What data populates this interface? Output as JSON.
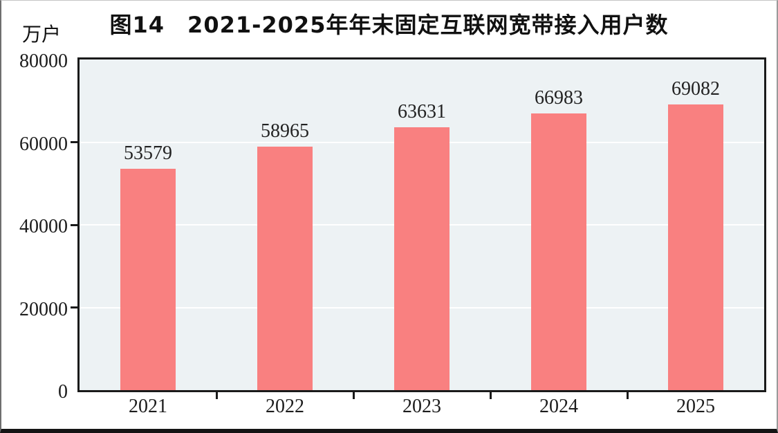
{
  "title": {
    "full": "图14　2021-2025年年末固定互联网宽带接入用户数"
  },
  "unit_label": "万户",
  "chart_data": {
    "type": "bar",
    "title": "图14 2021-2025年年末固定互联网宽带接入用户数",
    "categories": [
      "2021",
      "2022",
      "2023",
      "2024",
      "2025"
    ],
    "values": [
      53579,
      58965,
      63631,
      66983,
      69082
    ],
    "data_labels": [
      "53579",
      "58965",
      "63631",
      "66983",
      "69082"
    ],
    "xlabel": "",
    "ylabel": "万户",
    "ylim": [
      0,
      80000
    ],
    "yticks": [
      0,
      20000,
      40000,
      60000,
      80000
    ],
    "ytick_labels": [
      "0",
      "20000",
      "40000",
      "60000",
      "80000"
    ],
    "grid": "horizontal-white-lines",
    "legend": "none",
    "bar_color": "#F98080",
    "plot_bg": "#EDF2F4",
    "border_color": "#1a1a1a"
  }
}
